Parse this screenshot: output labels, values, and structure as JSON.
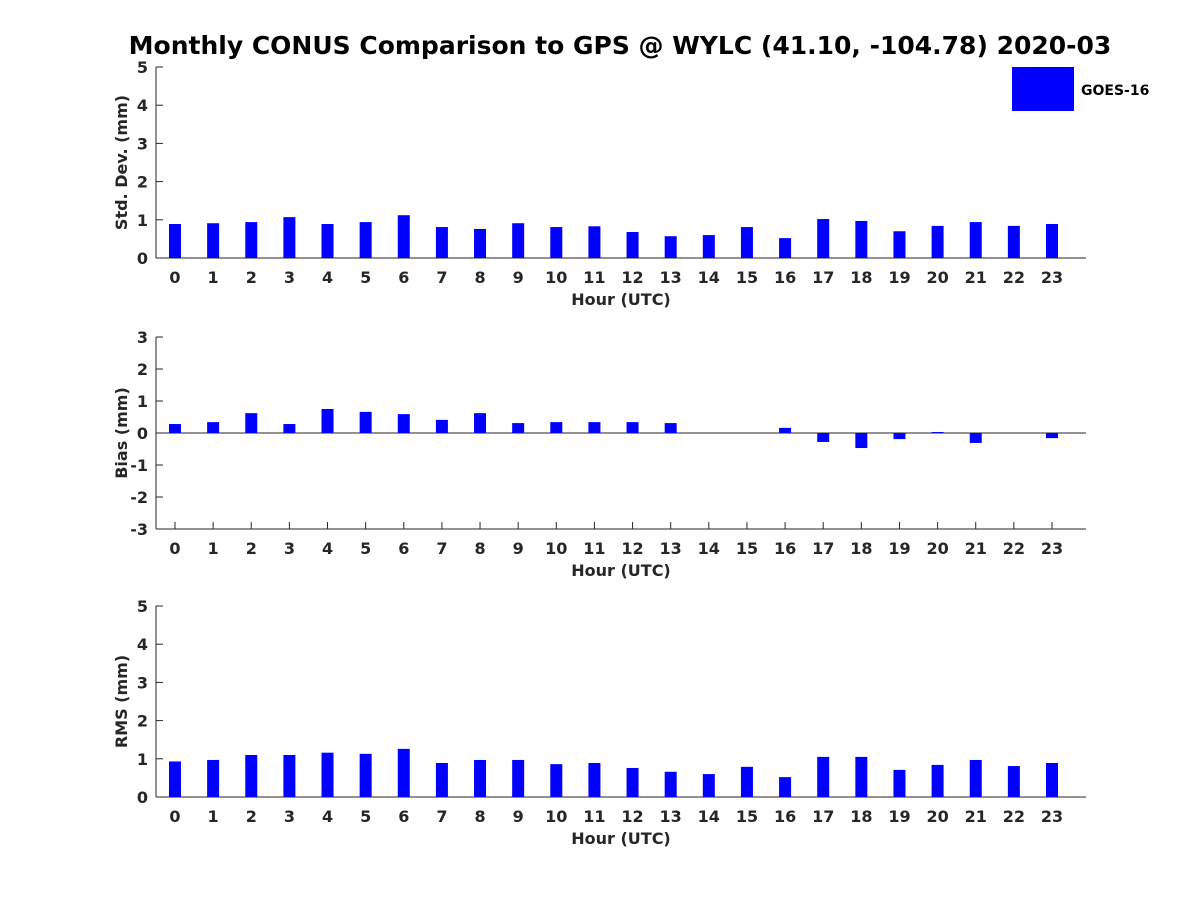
{
  "title": "Monthly CONUS Comparison to GPS @ WYLC (41.10, -104.78) 2020-03",
  "legend": {
    "label": "GOES-16",
    "color": "#0000ff",
    "position": "top-right"
  },
  "chart_data": [
    {
      "type": "bar",
      "xlabel": "Hour (UTC)",
      "ylabel": "Std. Dev. (mm)",
      "ylim": [
        0,
        5
      ],
      "yticks": [
        0,
        1,
        2,
        3,
        4,
        5
      ],
      "categories": [
        "0",
        "1",
        "2",
        "3",
        "4",
        "5",
        "6",
        "7",
        "8",
        "9",
        "10",
        "11",
        "12",
        "13",
        "14",
        "15",
        "16",
        "17",
        "18",
        "19",
        "20",
        "21",
        "22",
        "23"
      ],
      "series": [
        {
          "name": "GOES-16",
          "color": "#0000ff",
          "values": [
            0.89,
            0.91,
            0.94,
            1.07,
            0.89,
            0.94,
            1.12,
            0.81,
            0.76,
            0.91,
            0.81,
            0.83,
            0.68,
            0.57,
            0.6,
            0.81,
            0.52,
            1.02,
            0.97,
            0.7,
            0.84,
            0.94,
            0.84,
            0.89
          ]
        }
      ]
    },
    {
      "type": "bar",
      "xlabel": "Hour (UTC)",
      "ylabel": "Bias (mm)",
      "ylim": [
        -3,
        3
      ],
      "yticks": [
        -3,
        -2,
        -1,
        0,
        1,
        2,
        3
      ],
      "categories": [
        "0",
        "1",
        "2",
        "3",
        "4",
        "5",
        "6",
        "7",
        "8",
        "9",
        "10",
        "11",
        "12",
        "13",
        "14",
        "15",
        "16",
        "17",
        "18",
        "19",
        "20",
        "21",
        "22",
        "23"
      ],
      "series": [
        {
          "name": "GOES-16",
          "color": "#0000ff",
          "values": [
            0.28,
            0.34,
            0.62,
            0.28,
            0.75,
            0.66,
            0.59,
            0.41,
            0.62,
            0.31,
            0.34,
            0.34,
            0.34,
            0.31,
            0.0,
            0.0,
            0.16,
            -0.28,
            -0.47,
            -0.19,
            0.03,
            -0.31,
            0.0,
            -0.16
          ]
        }
      ]
    },
    {
      "type": "bar",
      "xlabel": "Hour (UTC)",
      "ylabel": "RMS (mm)",
      "ylim": [
        0,
        5
      ],
      "yticks": [
        0,
        1,
        2,
        3,
        4,
        5
      ],
      "categories": [
        "0",
        "1",
        "2",
        "3",
        "4",
        "5",
        "6",
        "7",
        "8",
        "9",
        "10",
        "11",
        "12",
        "13",
        "14",
        "15",
        "16",
        "17",
        "18",
        "19",
        "20",
        "21",
        "22",
        "23"
      ],
      "series": [
        {
          "name": "GOES-16",
          "color": "#0000ff",
          "values": [
            0.93,
            0.97,
            1.1,
            1.1,
            1.16,
            1.13,
            1.26,
            0.89,
            0.97,
            0.97,
            0.86,
            0.89,
            0.76,
            0.66,
            0.6,
            0.79,
            0.52,
            1.05,
            1.05,
            0.71,
            0.84,
            0.97,
            0.81,
            0.89
          ]
        }
      ]
    }
  ]
}
